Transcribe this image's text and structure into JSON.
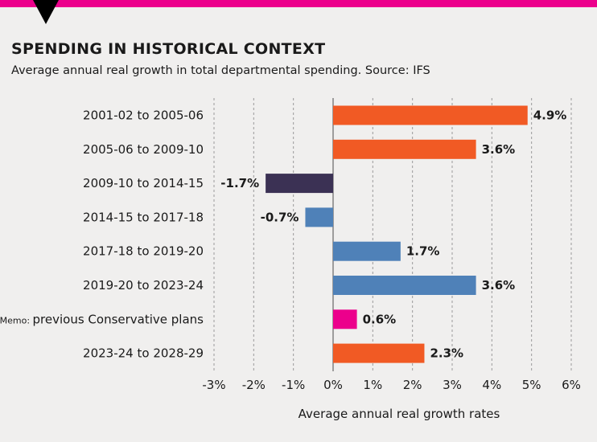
{
  "colors": {
    "accent_bar": "#ec008c",
    "orange": "#f15a24",
    "dark": "#3b3154",
    "blue": "#4f81b8",
    "pink": "#ec008c"
  },
  "header": {
    "title": "SPENDING IN HISTORICAL CONTEXT",
    "subtitle": "Average annual real growth in total departmental spending. Source: IFS"
  },
  "chart_data": {
    "type": "bar",
    "orientation": "horizontal",
    "title": "SPENDING IN HISTORICAL CONTEXT",
    "subtitle": "Average annual real growth in total departmental spending. Source: IFS",
    "xlabel": "Average annual real growth rates",
    "ylabel": "",
    "xlim": [
      -3,
      6
    ],
    "xticks": [
      -3,
      -2,
      -1,
      0,
      1,
      2,
      3,
      4,
      5,
      6
    ],
    "xtick_labels": [
      "-3%",
      "-2%",
      "-1%",
      "0%",
      "1%",
      "2%",
      "3%",
      "4%",
      "5%",
      "6%"
    ],
    "grid": "vertical dashed",
    "bars": [
      {
        "category": "2001-02 to 2005-06",
        "value": 4.9,
        "label": "4.9%",
        "color": "#f15a24"
      },
      {
        "category": "2005-06 to 2009-10",
        "value": 3.6,
        "label": "3.6%",
        "color": "#f15a24"
      },
      {
        "category": "2009-10 to 2014-15",
        "value": -1.7,
        "label": "-1.7%",
        "color": "#3b3154"
      },
      {
        "category": "2014-15 to 2017-18",
        "value": -0.7,
        "label": "-0.7%",
        "color": "#4f81b8"
      },
      {
        "category": "2017-18 to 2019-20",
        "value": 1.7,
        "label": "1.7%",
        "color": "#4f81b8"
      },
      {
        "category": "2019-20 to 2023-24",
        "value": 3.6,
        "label": "3.6%",
        "color": "#4f81b8"
      },
      {
        "category_prefix": "Memo:",
        "category": "previous Conservative plans",
        "value": 0.6,
        "label": "0.6%",
        "color": "#ec008c"
      },
      {
        "category": "2023-24 to 2028-29",
        "value": 2.3,
        "label": "2.3%",
        "color": "#f15a24"
      }
    ]
  }
}
